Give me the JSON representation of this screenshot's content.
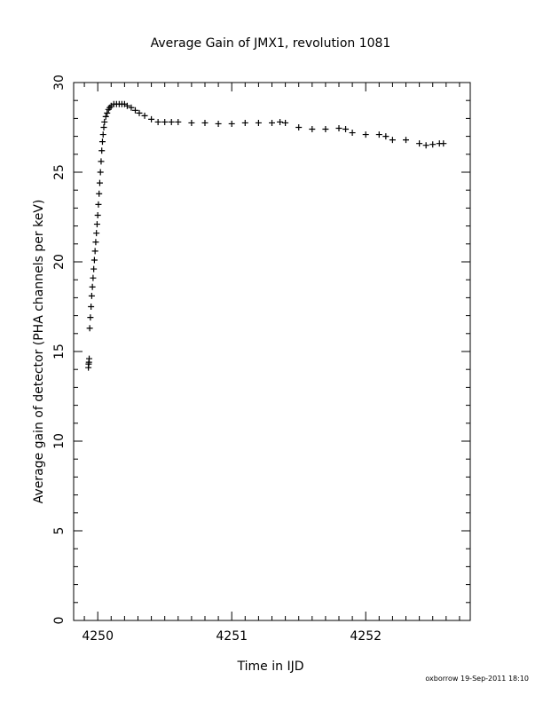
{
  "chart_data": {
    "type": "scatter",
    "title": "Average Gain of JMX1, revolution 1081",
    "xlabel": "Time in IJD",
    "ylabel": "Average gain of detector (PHA channels per keV)",
    "xlim": [
      4249.82,
      4252.78
    ],
    "ylim": [
      0,
      30
    ],
    "xticks": [
      4250,
      4251,
      4252
    ],
    "yticks": [
      0,
      5,
      10,
      15,
      20,
      25,
      30
    ],
    "marker": "plus",
    "color": "#000000",
    "grid": false,
    "series": [
      {
        "x": [
          4249.93,
          4249.932,
          4249.934,
          4249.936,
          4249.94,
          4249.945,
          4249.95,
          4249.955,
          4249.96,
          4249.965,
          4249.97,
          4249.975,
          4249.98,
          4249.985,
          4249.99,
          4249.995,
          4250.0,
          4250.005,
          4250.01,
          4250.015,
          4250.02,
          4250.025,
          4250.03,
          4250.035,
          4250.04,
          4250.045,
          4250.05,
          4250.06,
          4250.07,
          4250.08,
          4250.09,
          4250.1,
          4250.12,
          4250.14,
          4250.16,
          4250.18,
          4250.2,
          4250.22,
          4250.25,
          4250.28,
          4250.31,
          4250.35,
          4250.4,
          4250.45,
          4250.5,
          4250.55,
          4250.6,
          4250.7,
          4250.8,
          4250.9,
          4251.0,
          4251.1,
          4251.2,
          4251.3,
          4251.36,
          4251.4,
          4251.5,
          4251.6,
          4251.7,
          4251.8,
          4251.85,
          4251.9,
          4252.0,
          4252.1,
          4252.15,
          4252.2,
          4252.3,
          4252.4,
          4252.45,
          4252.5,
          4252.55,
          4252.58
        ],
        "y": [
          14.1,
          14.3,
          14.4,
          14.6,
          16.3,
          16.9,
          17.5,
          18.1,
          18.6,
          19.1,
          19.6,
          20.1,
          20.6,
          21.1,
          21.6,
          22.1,
          22.6,
          23.2,
          23.8,
          24.4,
          25.0,
          25.6,
          26.2,
          26.7,
          27.1,
          27.5,
          27.8,
          28.1,
          28.3,
          28.5,
          28.6,
          28.7,
          28.8,
          28.8,
          28.8,
          28.8,
          28.8,
          28.7,
          28.6,
          28.45,
          28.3,
          28.15,
          27.95,
          27.8,
          27.8,
          27.8,
          27.8,
          27.75,
          27.75,
          27.7,
          27.7,
          27.75,
          27.75,
          27.75,
          27.8,
          27.75,
          27.5,
          27.4,
          27.4,
          27.45,
          27.4,
          27.2,
          27.1,
          27.1,
          27.0,
          26.8,
          26.8,
          26.6,
          26.5,
          26.55,
          26.6,
          26.6
        ]
      }
    ]
  },
  "footer": "oxborrow 19-Sep-2011 18:10"
}
